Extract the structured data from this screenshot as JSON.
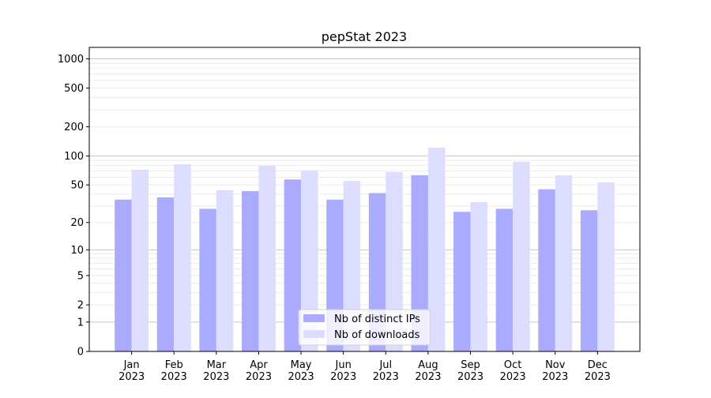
{
  "chart_data": {
    "type": "bar",
    "title": "pepStat 2023",
    "xlabel": "",
    "ylabel": "",
    "yscale": "log(1+x)",
    "ylim": [
      0,
      1310
    ],
    "xlim": [
      -1,
      12
    ],
    "grid": "major and minor horizontal",
    "legend_position": "bottom-center",
    "categories": [
      "Jan\n2023",
      "Feb\n2023",
      "Mar\n2023",
      "Apr\n2023",
      "May\n2023",
      "Jun\n2023",
      "Jul\n2023",
      "Aug\n2023",
      "Sep\n2023",
      "Oct\n2023",
      "Nov\n2023",
      "Dec\n2023"
    ],
    "yticks": [
      0,
      1,
      2,
      5,
      10,
      20,
      50,
      100,
      200,
      500,
      1000
    ],
    "ytick_labels": [
      "0",
      "1",
      "2",
      "5",
      "10",
      "20",
      "50",
      "100",
      "200",
      "500",
      "1000"
    ],
    "series": [
      {
        "name": "Nb of distinct IPs",
        "color": "#aaaaff",
        "values": [
          35,
          37,
          28,
          43,
          57,
          35,
          41,
          63,
          26,
          28,
          45,
          27
        ]
      },
      {
        "name": "Nb of downloads",
        "color": "#ddddff",
        "values": [
          72,
          82,
          44,
          79,
          71,
          55,
          68,
          122,
          33,
          87,
          63,
          53
        ]
      }
    ]
  }
}
